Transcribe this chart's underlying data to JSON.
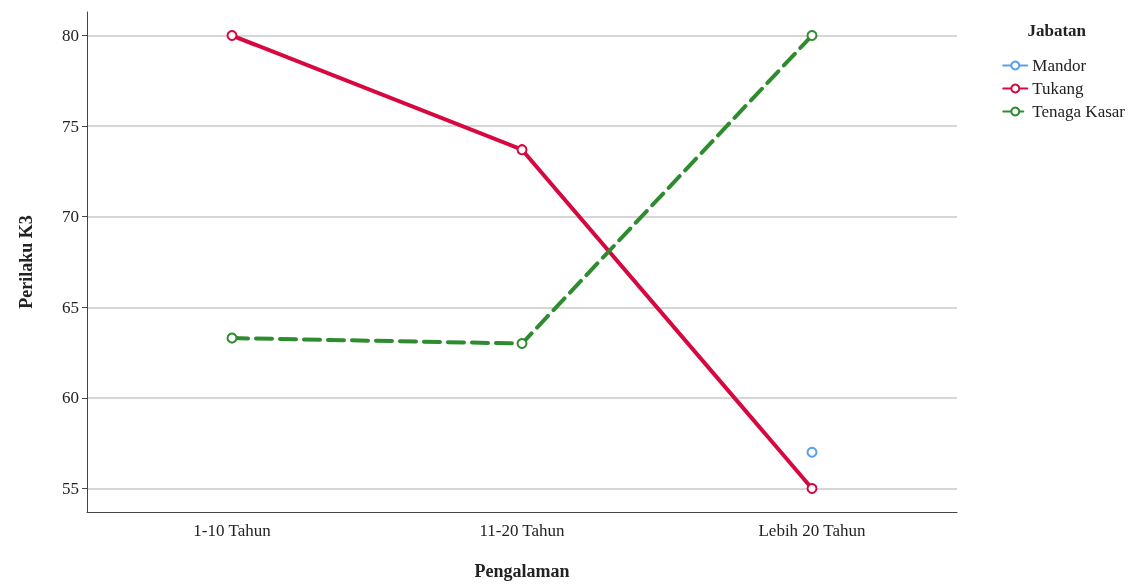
{
  "chart_data": {
    "type": "line",
    "xlabel": "Pengalaman",
    "ylabel": "Perilaku K3",
    "legend_title": "Jabatan",
    "categories": [
      "1-10 Tahun",
      "11-20 Tahun",
      "Lebih 20 Tahun"
    ],
    "series": [
      {
        "name": "Mandor",
        "color": "#5b9ef0",
        "values": [
          null,
          null,
          57
        ],
        "line_style": "solid"
      },
      {
        "name": "Tukang",
        "color": "#d6083f",
        "values": [
          80,
          73.7,
          55
        ],
        "line_style": "solid"
      },
      {
        "name": "Tenaga Kasar",
        "color": "#2e8b2e",
        "values": [
          63.3,
          63.0,
          80
        ],
        "line_style": "dashed"
      }
    ],
    "ylim": [
      53.7,
      81.3
    ],
    "yticks": [
      55,
      60,
      65,
      70,
      75,
      80
    ],
    "grid": "y",
    "legend": "top right",
    "marker": "circle"
  }
}
